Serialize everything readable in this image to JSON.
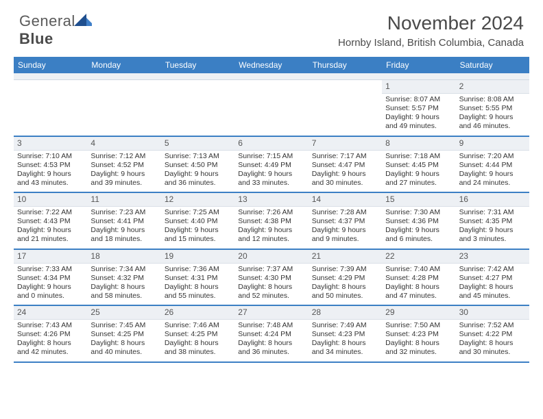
{
  "brand": {
    "word1": "General",
    "word2": "Blue"
  },
  "title": "November 2024",
  "location": "Hornby Island, British Columbia, Canada",
  "colors": {
    "accent": "#3b7fc4",
    "logo_dark": "#1f4f8f",
    "logo_light": "#3f7fc8",
    "header_bg": "#3b7fc4",
    "daynum_bg": "#edf0f4",
    "text": "#333333"
  },
  "daysOfWeek": [
    "Sunday",
    "Monday",
    "Tuesday",
    "Wednesday",
    "Thursday",
    "Friday",
    "Saturday"
  ],
  "layout": {
    "leadingBlanks": 5,
    "cols": 7
  },
  "days": [
    {
      "n": 1,
      "sr": "8:07 AM",
      "ss": "5:57 PM",
      "dl": "9 hours and 49 minutes."
    },
    {
      "n": 2,
      "sr": "8:08 AM",
      "ss": "5:55 PM",
      "dl": "9 hours and 46 minutes."
    },
    {
      "n": 3,
      "sr": "7:10 AM",
      "ss": "4:53 PM",
      "dl": "9 hours and 43 minutes."
    },
    {
      "n": 4,
      "sr": "7:12 AM",
      "ss": "4:52 PM",
      "dl": "9 hours and 39 minutes."
    },
    {
      "n": 5,
      "sr": "7:13 AM",
      "ss": "4:50 PM",
      "dl": "9 hours and 36 minutes."
    },
    {
      "n": 6,
      "sr": "7:15 AM",
      "ss": "4:49 PM",
      "dl": "9 hours and 33 minutes."
    },
    {
      "n": 7,
      "sr": "7:17 AM",
      "ss": "4:47 PM",
      "dl": "9 hours and 30 minutes."
    },
    {
      "n": 8,
      "sr": "7:18 AM",
      "ss": "4:45 PM",
      "dl": "9 hours and 27 minutes."
    },
    {
      "n": 9,
      "sr": "7:20 AM",
      "ss": "4:44 PM",
      "dl": "9 hours and 24 minutes."
    },
    {
      "n": 10,
      "sr": "7:22 AM",
      "ss": "4:43 PM",
      "dl": "9 hours and 21 minutes."
    },
    {
      "n": 11,
      "sr": "7:23 AM",
      "ss": "4:41 PM",
      "dl": "9 hours and 18 minutes."
    },
    {
      "n": 12,
      "sr": "7:25 AM",
      "ss": "4:40 PM",
      "dl": "9 hours and 15 minutes."
    },
    {
      "n": 13,
      "sr": "7:26 AM",
      "ss": "4:38 PM",
      "dl": "9 hours and 12 minutes."
    },
    {
      "n": 14,
      "sr": "7:28 AM",
      "ss": "4:37 PM",
      "dl": "9 hours and 9 minutes."
    },
    {
      "n": 15,
      "sr": "7:30 AM",
      "ss": "4:36 PM",
      "dl": "9 hours and 6 minutes."
    },
    {
      "n": 16,
      "sr": "7:31 AM",
      "ss": "4:35 PM",
      "dl": "9 hours and 3 minutes."
    },
    {
      "n": 17,
      "sr": "7:33 AM",
      "ss": "4:34 PM",
      "dl": "9 hours and 0 minutes."
    },
    {
      "n": 18,
      "sr": "7:34 AM",
      "ss": "4:32 PM",
      "dl": "8 hours and 58 minutes."
    },
    {
      "n": 19,
      "sr": "7:36 AM",
      "ss": "4:31 PM",
      "dl": "8 hours and 55 minutes."
    },
    {
      "n": 20,
      "sr": "7:37 AM",
      "ss": "4:30 PM",
      "dl": "8 hours and 52 minutes."
    },
    {
      "n": 21,
      "sr": "7:39 AM",
      "ss": "4:29 PM",
      "dl": "8 hours and 50 minutes."
    },
    {
      "n": 22,
      "sr": "7:40 AM",
      "ss": "4:28 PM",
      "dl": "8 hours and 47 minutes."
    },
    {
      "n": 23,
      "sr": "7:42 AM",
      "ss": "4:27 PM",
      "dl": "8 hours and 45 minutes."
    },
    {
      "n": 24,
      "sr": "7:43 AM",
      "ss": "4:26 PM",
      "dl": "8 hours and 42 minutes."
    },
    {
      "n": 25,
      "sr": "7:45 AM",
      "ss": "4:25 PM",
      "dl": "8 hours and 40 minutes."
    },
    {
      "n": 26,
      "sr": "7:46 AM",
      "ss": "4:25 PM",
      "dl": "8 hours and 38 minutes."
    },
    {
      "n": 27,
      "sr": "7:48 AM",
      "ss": "4:24 PM",
      "dl": "8 hours and 36 minutes."
    },
    {
      "n": 28,
      "sr": "7:49 AM",
      "ss": "4:23 PM",
      "dl": "8 hours and 34 minutes."
    },
    {
      "n": 29,
      "sr": "7:50 AM",
      "ss": "4:23 PM",
      "dl": "8 hours and 32 minutes."
    },
    {
      "n": 30,
      "sr": "7:52 AM",
      "ss": "4:22 PM",
      "dl": "8 hours and 30 minutes."
    }
  ],
  "labels": {
    "sunrise": "Sunrise:",
    "sunset": "Sunset:",
    "daylight": "Daylight:"
  }
}
